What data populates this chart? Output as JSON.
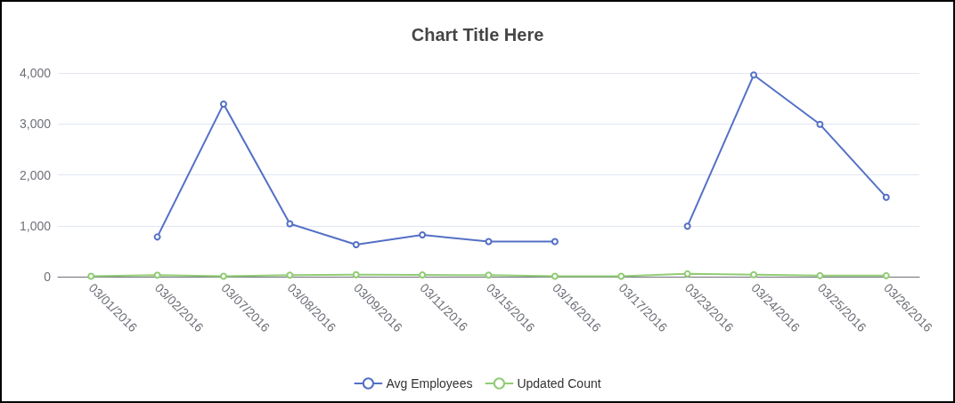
{
  "chart_data": {
    "type": "line",
    "title": "Chart Title Here",
    "categories": [
      "03/01/2016",
      "03/02/2016",
      "03/07/2016",
      "03/08/2016",
      "03/09/2016",
      "03/11/2016",
      "03/15/2016",
      "03/16/2016",
      "03/17/2016",
      "03/23/2016",
      "03/24/2016",
      "03/25/2016",
      "03/26/2016"
    ],
    "series": [
      {
        "name": "Avg Employees",
        "color": "#5470c6",
        "values": [
          null,
          780,
          3390,
          1040,
          630,
          820,
          690,
          690,
          null,
          990,
          3960,
          2990,
          1560
        ]
      },
      {
        "name": "Updated Count",
        "color": "#91cc75",
        "values": [
          10,
          30,
          10,
          30,
          40,
          35,
          30,
          10,
          10,
          55,
          40,
          20,
          20
        ]
      }
    ],
    "ylim": [
      0,
      4000
    ],
    "yticks": [
      {
        "value": 0,
        "label": "0"
      },
      {
        "value": 1000,
        "label": "1,000"
      },
      {
        "value": 2000,
        "label": "2,000"
      },
      {
        "value": 3000,
        "label": "3,000"
      },
      {
        "value": 4000,
        "label": "4,000"
      }
    ],
    "grid": "y",
    "legend": "bottom",
    "marker": "circle",
    "line_style": "solid"
  }
}
